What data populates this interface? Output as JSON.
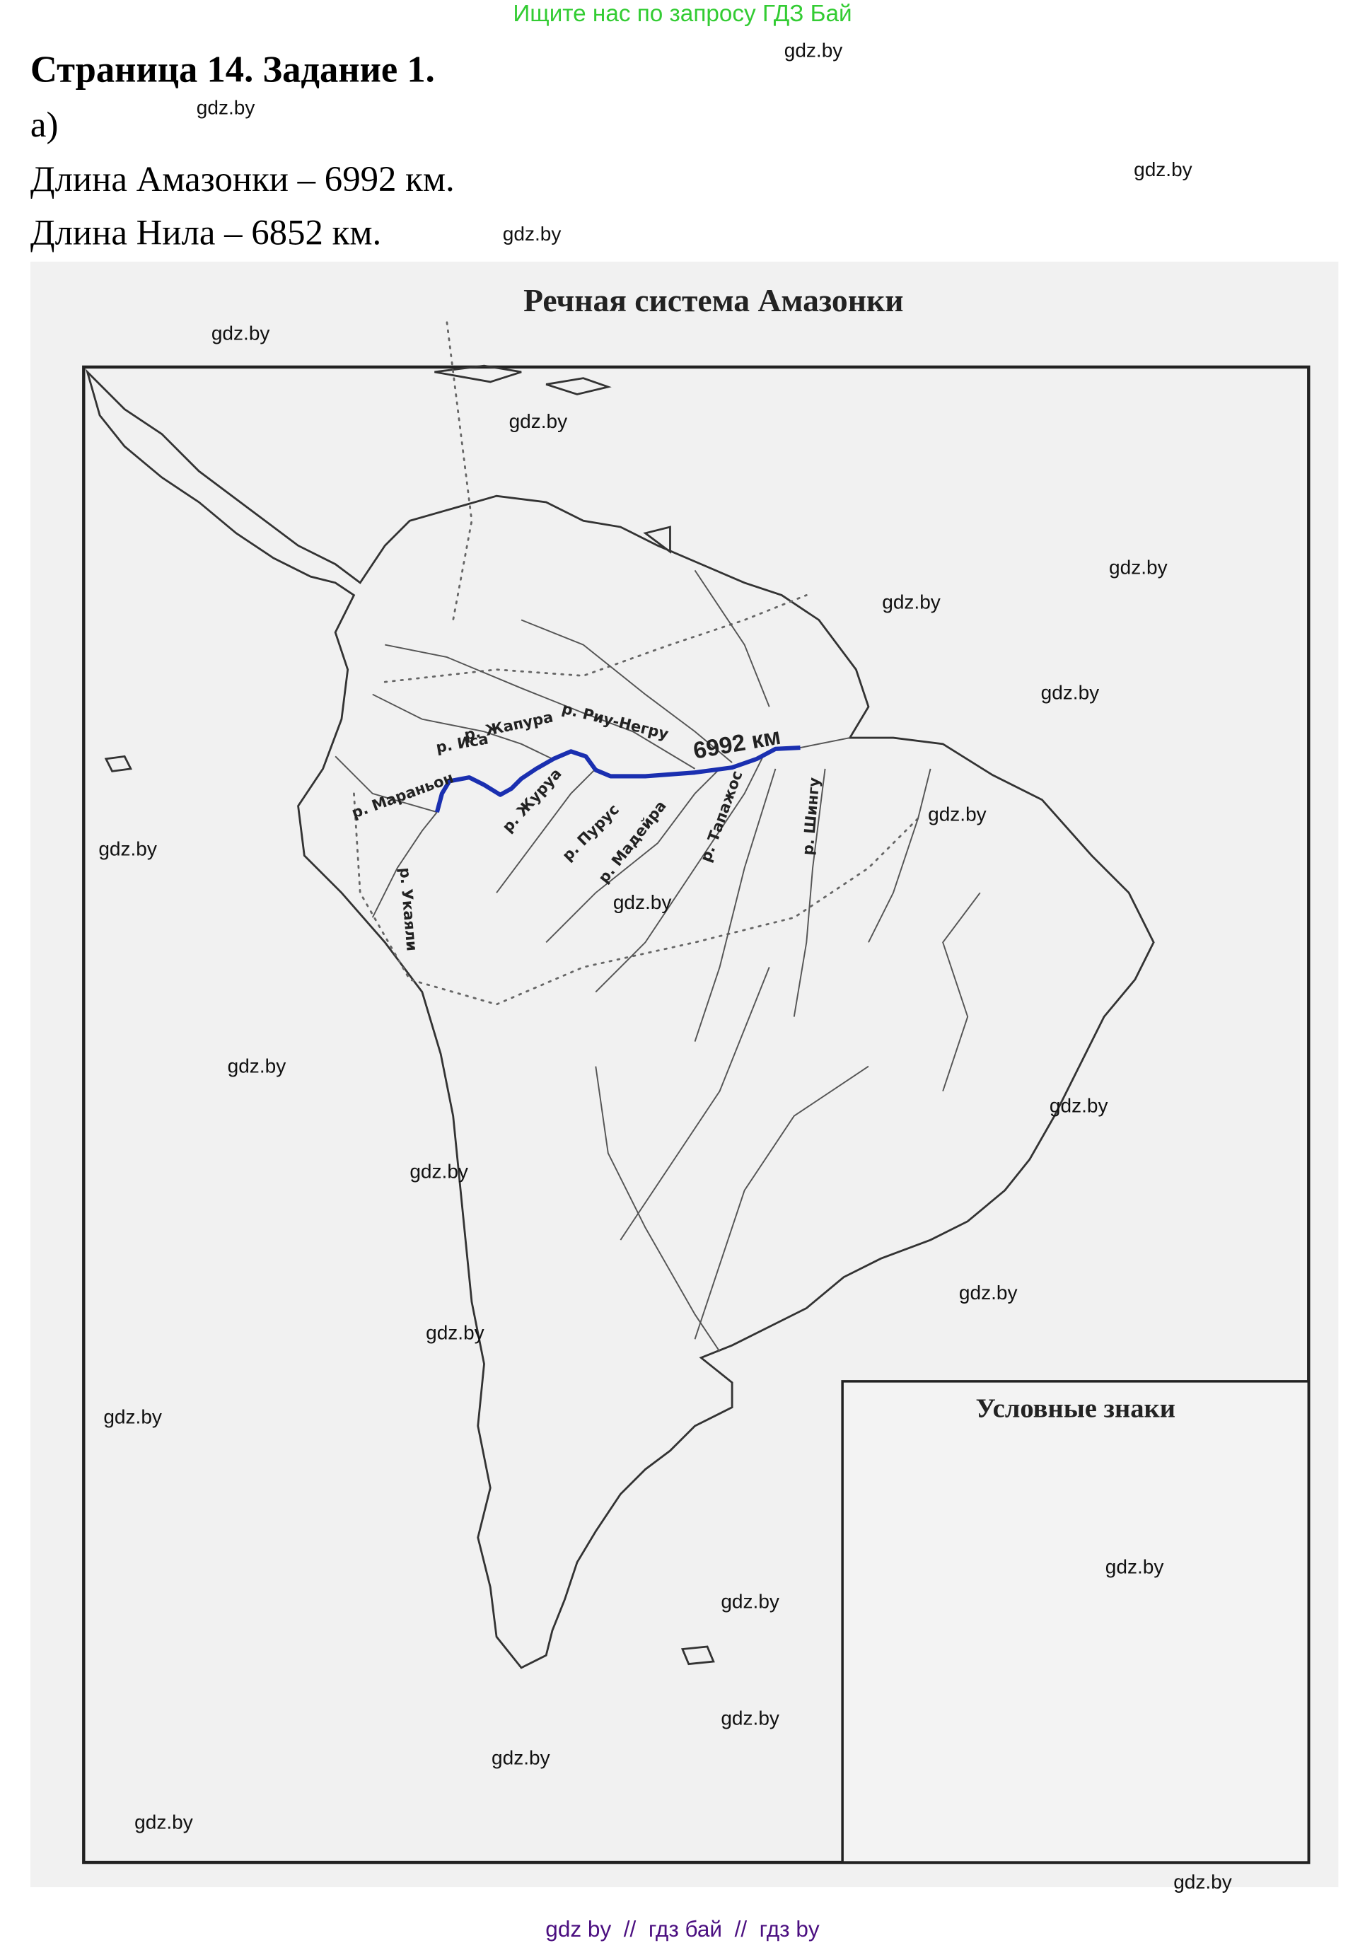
{
  "header": {
    "search_hint": "Ищите нас по запросу ГДЗ Бай",
    "search_hint_color": "#33cc33"
  },
  "task": {
    "title": "Страница 14. Задание 1.",
    "part": "а)",
    "lines": [
      "Длина Амазонки – 6992 км.",
      "Длина Нила – 6852 км."
    ]
  },
  "map": {
    "title": "Речная система Амазонки",
    "legend_title": "Условные знаки",
    "amazon_length_label": "6992 км",
    "amazon_color": "#1a2fb0",
    "rivers": [
      "р. Жапура",
      "р. Риу-Негру",
      "р. Иса",
      "р. Мараньон",
      "р. Журуа",
      "р. Пурус",
      "р. Мадейра",
      "р. Тапажос",
      "р. Шингу",
      "р. Укаяли"
    ]
  },
  "watermark": "gdz.by",
  "footer": {
    "text": "gdz by  //  гдз бай  //  гдз by",
    "color": "#4b0f80"
  }
}
